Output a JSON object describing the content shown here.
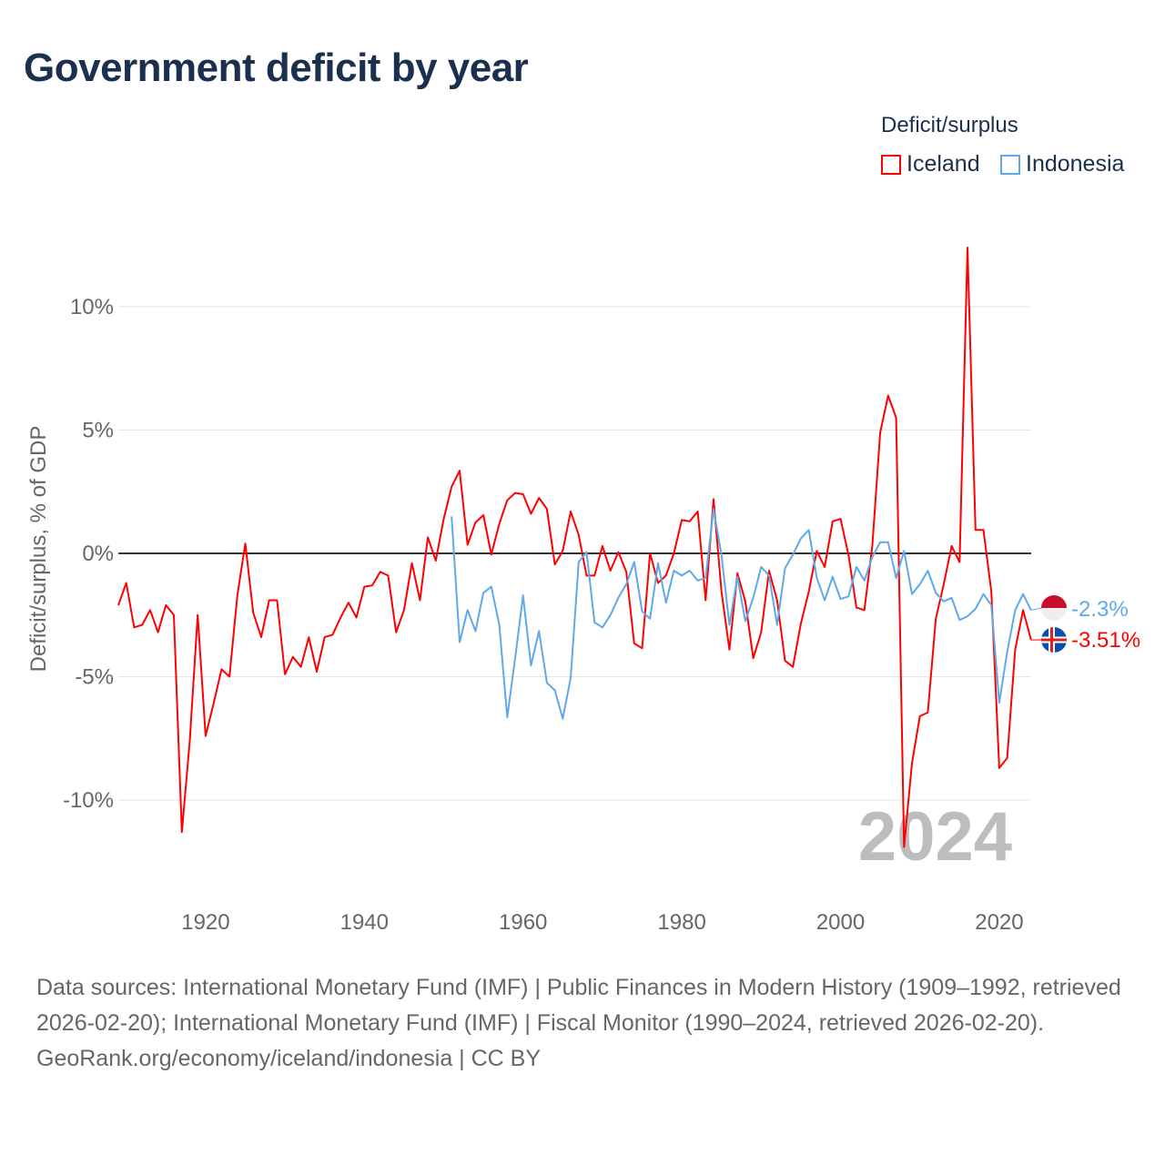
{
  "title": "Government deficit by year",
  "legend": {
    "title": "Deficit/surplus",
    "items": [
      {
        "label": "Iceland",
        "color": "#ff0000"
      },
      {
        "label": "Indonesia",
        "color": "#5fa8ea"
      }
    ]
  },
  "footer": {
    "sources": "Data sources: International Monetary Fund (IMF) | Public Finances in Modern History (1909–1992, retrieved 2026-02-20); International Monetary Fund (IMF) | Fiscal Monitor (1990–2024, retrieved 2026-02-20).",
    "credit": "GeoRank.org/economy/iceland/indonesia | CC BY"
  },
  "chart_data": {
    "type": "line",
    "title": "Government deficit by year",
    "ylabel": "Deficit/surplus, % of GDP",
    "xlabel": "",
    "xlim": [
      1909,
      2024
    ],
    "ylim": [
      -13.5,
      13
    ],
    "xticks": [
      1920,
      1940,
      1960,
      1980,
      2000,
      2020
    ],
    "yticks": [
      {
        "v": 10,
        "label": "10%"
      },
      {
        "v": 5,
        "label": "5%"
      },
      {
        "v": 0,
        "label": "0%"
      },
      {
        "v": -5,
        "label": "-5%"
      },
      {
        "v": -10,
        "label": "-10%"
      }
    ],
    "grid": true,
    "legend_position": "top-right",
    "year_watermark": "2024",
    "series": [
      {
        "name": "Iceland",
        "color": "#ff0000",
        "end_label": "-3.51%",
        "start": 1909,
        "values": [
          -2.1,
          -1.2,
          -3.0,
          -2.9,
          -2.3,
          -3.2,
          -2.1,
          -2.5,
          -11.3,
          -7.6,
          -2.5,
          -7.4,
          -6.1,
          -4.7,
          -5.0,
          -1.7,
          0.4,
          -2.4,
          -3.4,
          -1.9,
          -1.9,
          -4.9,
          -4.2,
          -4.6,
          -3.4,
          -4.8,
          -3.4,
          -3.3,
          -2.6,
          -2.0,
          -2.6,
          -1.35,
          -1.3,
          -0.75,
          -0.9,
          -3.2,
          -2.3,
          -0.4,
          -1.9,
          0.65,
          -0.3,
          1.4,
          2.7,
          3.35,
          0.35,
          1.25,
          1.55,
          -0.05,
          1.2,
          2.15,
          2.45,
          2.4,
          1.6,
          2.25,
          1.8,
          -0.45,
          0.1,
          1.7,
          0.75,
          -0.9,
          -0.9,
          0.3,
          -0.7,
          0.05,
          -0.75,
          -3.65,
          -3.85,
          0,
          -1.2,
          -0.9,
          0,
          1.35,
          1.3,
          1.7,
          -1.9,
          2.2,
          -1.55,
          -3.9,
          -0.8,
          -1.95,
          -4.25,
          -3.2,
          -0.7,
          -1.9,
          -4.35,
          -4.6,
          -2.85,
          -1.55,
          0.1,
          -0.55,
          1.3,
          1.4,
          -0.05,
          -2.2,
          -2.3,
          0.3,
          4.9,
          6.4,
          5.5,
          -11.9,
          -8.5,
          -6.6,
          -6.45,
          -2.65,
          -1.25,
          0.3,
          -0.35,
          12.4,
          0.95,
          0.95,
          -1.55,
          -8.7,
          -8.3,
          -3.9,
          -2.3,
          -3.51
        ]
      },
      {
        "name": "Indonesia",
        "color": "#5fa8ea",
        "end_label": "-2.3%",
        "start": 1951,
        "values": [
          1.5,
          -3.6,
          -2.3,
          -3.15,
          -1.6,
          -1.35,
          -2.9,
          -6.65,
          -4.25,
          -1.7,
          -4.55,
          -3.15,
          -5.25,
          -5.55,
          -6.7,
          -5.05,
          -0.35,
          0.05,
          -2.8,
          -3.0,
          -2.5,
          -1.8,
          -1.25,
          -0.35,
          -2.35,
          -2.65,
          -0.4,
          -2.0,
          -0.7,
          -0.9,
          -0.7,
          -1.1,
          -1.0,
          1.8,
          -0.07,
          -2.9,
          -0.95,
          -2.75,
          -1.8,
          -0.55,
          -0.9,
          -2.9,
          -0.6,
          -0.05,
          0.6,
          0.95,
          -1.0,
          -1.9,
          -0.95,
          -1.85,
          -1.75,
          -0.55,
          -1.1,
          -0.15,
          0.45,
          0.45,
          -1.0,
          0.1,
          -1.65,
          -1.25,
          -0.7,
          -1.6,
          -1.95,
          -1.8,
          -2.7,
          -2.55,
          -2.25,
          -1.65,
          -2.1,
          -6.05,
          -4.0,
          -2.3,
          -1.65,
          -2.3
        ]
      }
    ]
  }
}
